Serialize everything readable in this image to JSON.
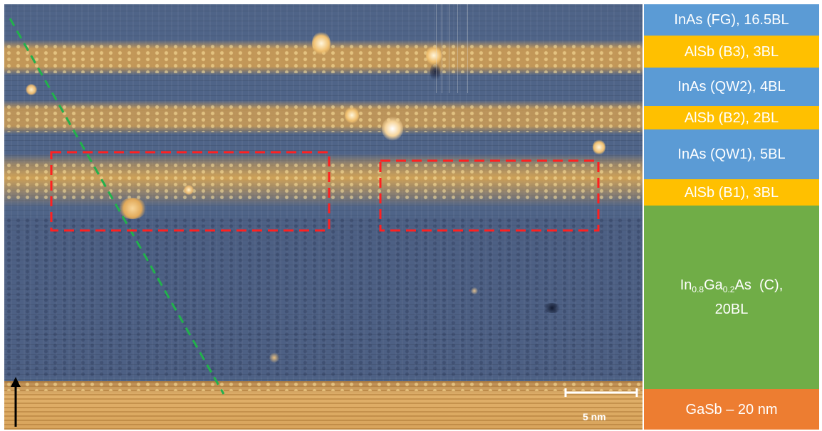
{
  "layers": [
    {
      "label": "InAs (FG), 16.5BL",
      "color": "#5b9bd5"
    },
    {
      "label": "AlSb (B3), 3BL",
      "color": "#ffc000"
    },
    {
      "label": "InAs (QW2), 4BL",
      "color": "#5b9bd5"
    },
    {
      "label": "AlSb (B2), 2BL",
      "color": "#ffc000"
    },
    {
      "label": "InAs (QW1), 5BL",
      "color": "#5b9bd5"
    },
    {
      "label": "AlSb (B1), 3BL",
      "color": "#ffc000"
    },
    {
      "label_parts": {
        "in": "In",
        "in_sub": "0.8",
        "ga": "Ga",
        "ga_sub": "0.2",
        "rest": "As  (C),",
        "line2": "20BL"
      },
      "color": "#70ad47"
    },
    {
      "label": "GaSb – 20 nm",
      "color": "#ed7d31"
    }
  ],
  "scale_bar": {
    "label": "5 nm"
  },
  "colors": {
    "highlight_box": "#ff2020",
    "guide_line": "#22b14c",
    "arrow": "#000000"
  }
}
